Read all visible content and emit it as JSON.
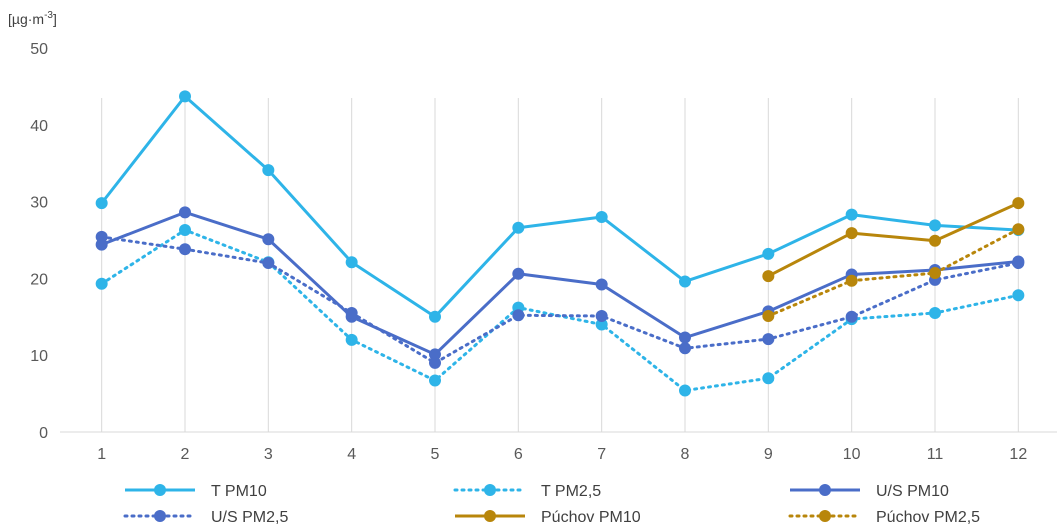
{
  "chart_data": {
    "type": "line",
    "title": "",
    "xlabel": "",
    "ylabel": "[µg·m-3]",
    "ylabel_base": "[µg·m",
    "ylabel_sup": "-3",
    "ylabel_end": "]",
    "ylim": [
      0,
      50
    ],
    "yticks": [
      0,
      10,
      20,
      30,
      40,
      50
    ],
    "grid": "vertical",
    "legend_placement": "bottom",
    "categories": [
      "1",
      "2",
      "3",
      "4",
      "5",
      "6",
      "7",
      "8",
      "9",
      "10",
      "11",
      "12"
    ],
    "series": [
      {
        "name": "T PM10",
        "style": "solid",
        "color": "#2EB4E8",
        "values": [
          29.8,
          43.7,
          34.1,
          22.1,
          15.0,
          26.6,
          28.0,
          19.6,
          23.2,
          28.3,
          26.9,
          26.3
        ]
      },
      {
        "name": "T PM2,5",
        "style": "dotted",
        "color": "#2EB4E8",
        "values": [
          19.3,
          26.3,
          22.1,
          12.0,
          6.7,
          16.2,
          14.0,
          5.4,
          7.0,
          14.7,
          15.5,
          17.8
        ]
      },
      {
        "name": "U/S PM10",
        "style": "solid",
        "color": "#4A6DC8",
        "values": [
          24.4,
          28.6,
          25.1,
          15.0,
          10.1,
          20.6,
          19.2,
          12.3,
          15.7,
          20.5,
          21.1,
          22.2
        ]
      },
      {
        "name": "U/S PM2,5",
        "style": "dotted",
        "color": "#4A6DC8",
        "values": [
          25.4,
          23.8,
          22.0,
          15.5,
          9.0,
          15.2,
          15.1,
          10.9,
          12.1,
          15.0,
          19.8,
          22.0
        ]
      },
      {
        "name": "Púchov PM10",
        "style": "solid",
        "color": "#B8860B",
        "values": [
          null,
          null,
          null,
          null,
          null,
          null,
          null,
          null,
          20.3,
          25.9,
          24.9,
          29.8
        ]
      },
      {
        "name": "Púchov PM2,5",
        "style": "dotted",
        "color": "#B8860B",
        "values": [
          null,
          null,
          null,
          null,
          null,
          null,
          null,
          null,
          15.1,
          19.7,
          20.7,
          26.4
        ]
      }
    ]
  }
}
